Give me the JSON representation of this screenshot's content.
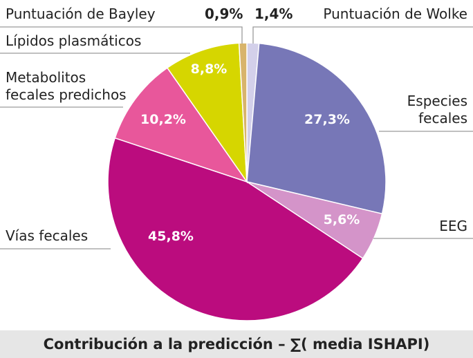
{
  "chart_data": {
    "type": "pie",
    "title": "Contribución a la predicción – ∑( media ISHAPI)",
    "start": "top",
    "direction": "clockwise",
    "slices": [
      {
        "label": "Puntuación de Wolke",
        "value": 1.4,
        "display": "1,4%",
        "color": "#d3d0ea"
      },
      {
        "label": "Especies fecales",
        "value": 27.3,
        "display": "27,3%",
        "color": "#7777b7"
      },
      {
        "label": "EEG",
        "value": 5.6,
        "display": "5,6%",
        "color": "#d494c9"
      },
      {
        "label": "Vías fecales",
        "value": 45.8,
        "display": "45,8%",
        "color": "#bb0c7e"
      },
      {
        "label": "Metabolitos fecales predichos",
        "value": 10.2,
        "display": "10,2%",
        "color": "#e8579b"
      },
      {
        "label": "Lípidos plasmáticos",
        "value": 8.8,
        "display": "8,8%",
        "color": "#d6d600"
      },
      {
        "label": "Puntuación de Bayley",
        "value": 0.9,
        "display": "0,9%",
        "color": "#d8b46b"
      }
    ]
  }
}
